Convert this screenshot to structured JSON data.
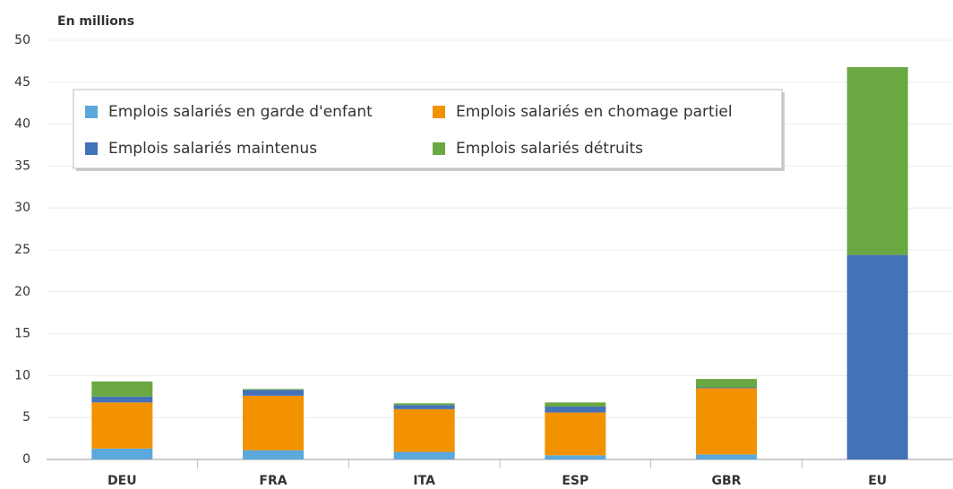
{
  "chart_data": {
    "type": "stacked_bar",
    "y_label": "En millions",
    "categories": [
      "DEU",
      "FRA",
      "ITA",
      "ESP",
      "GBR",
      "EU"
    ],
    "series": [
      {
        "name": "Emplois salariés en garde d'enfant",
        "color": "#5aa8dc",
        "values": [
          1.3,
          1.1,
          0.9,
          0.5,
          0.6,
          0
        ]
      },
      {
        "name": "Emplois salariés en chomage partiel",
        "color": "#f39200",
        "values": [
          5.5,
          6.5,
          5.1,
          5.1,
          7.9,
          0
        ]
      },
      {
        "name": "Emplois salariés maintenus",
        "color": "#4472b8",
        "values": [
          0.7,
          0.7,
          0.5,
          0.7,
          0.1,
          24.4
        ]
      },
      {
        "name": "Emplois salariés détruits",
        "color": "#6aa842",
        "values": [
          1.8,
          0.1,
          0.2,
          0.5,
          1.0,
          22.4
        ]
      }
    ],
    "ylim": [
      0,
      50
    ],
    "yticks": [
      0,
      5,
      10,
      15,
      20,
      25,
      30,
      35,
      40,
      45,
      50
    ],
    "grid": true
  }
}
